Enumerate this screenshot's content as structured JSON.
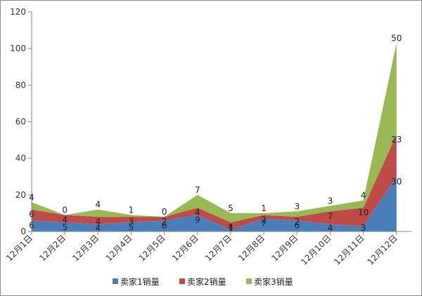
{
  "chart_data": {
    "type": "area",
    "stacked": true,
    "categories": [
      "12月1日",
      "12月2日",
      "12月3日",
      "12月4日",
      "12月5日",
      "12月6日",
      "12月7日",
      "12月8日",
      "12月9日",
      "12月10日",
      "12月11日",
      "12月12日"
    ],
    "series": [
      {
        "name": "卖家1销量",
        "color": "#4a7ebb",
        "values": [
          6,
          5,
          4,
          5,
          6,
          9,
          1,
          7,
          6,
          4,
          3,
          30
        ]
      },
      {
        "name": "卖家2销量",
        "color": "#be4b48",
        "values": [
          6,
          4,
          4,
          3,
          2,
          4,
          4,
          2,
          2,
          7,
          10,
          23
        ]
      },
      {
        "name": "卖家3销量",
        "color": "#98b954",
        "values": [
          4,
          0,
          4,
          1,
          0,
          7,
          5,
          1,
          3,
          3,
          4,
          50
        ]
      }
    ],
    "ylim": [
      0,
      120
    ],
    "yticks": [
      0,
      20,
      40,
      60,
      80,
      100,
      120
    ],
    "grid": false,
    "legend": "bottom",
    "data_labels": true
  }
}
